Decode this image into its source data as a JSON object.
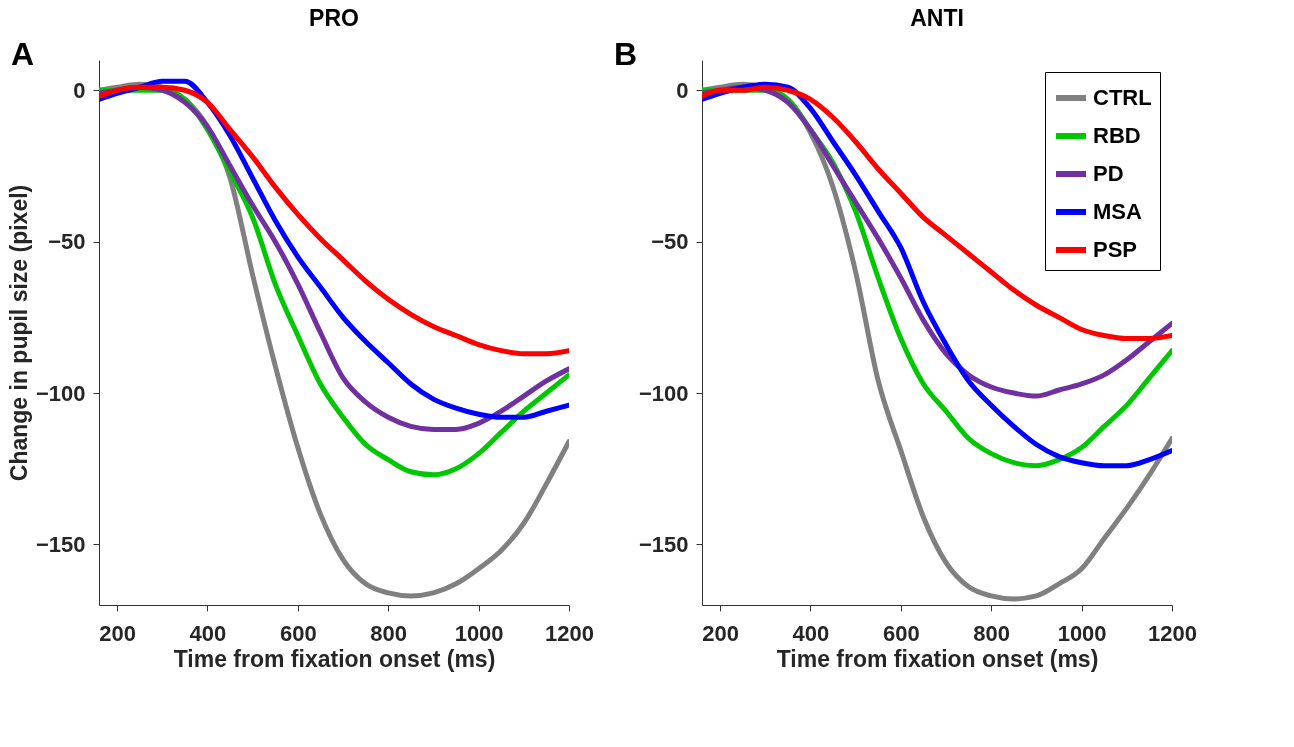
{
  "chart_data": [
    {
      "type": "line",
      "title": "PRO",
      "xlabel": "Time from fixation onset (ms)",
      "ylabel": "Change in pupil size (pixel)",
      "annotations": [
        "A"
      ],
      "legend": false,
      "grid": false,
      "line_style": "solid",
      "marker": "none",
      "x": [
        160,
        200,
        250,
        300,
        350,
        400,
        450,
        500,
        550,
        600,
        650,
        700,
        750,
        800,
        850,
        900,
        950,
        1000,
        1050,
        1100,
        1150,
        1200
      ],
      "xlim": [
        160,
        1200
      ],
      "xticks": [
        200,
        400,
        600,
        800,
        1000,
        1200
      ],
      "ylim": [
        -170,
        10
      ],
      "yticks": [
        0,
        -50,
        -100,
        -150
      ],
      "series": [
        {
          "color": "#808080",
          "values": [
            0,
            1,
            2,
            1,
            -3,
            -12,
            -29,
            -61,
            -91,
            -118,
            -140,
            -155,
            -163,
            -166,
            -167,
            -166,
            -163,
            -158,
            -152,
            -143,
            -130,
            -116
          ]
        },
        {
          "color": "#00c800",
          "values": [
            0,
            0,
            0,
            0,
            -3,
            -13,
            -27,
            -42,
            -64,
            -81,
            -97,
            -108,
            -117,
            -122,
            -126,
            -127,
            -125,
            -120,
            -113,
            -106,
            -100,
            -94
          ]
        },
        {
          "color": "#7030a0",
          "values": [
            -1,
            0,
            1,
            0,
            -4,
            -12,
            -25,
            -38,
            -50,
            -64,
            -80,
            -95,
            -103,
            -108,
            -111,
            -112,
            -112,
            -110,
            -106,
            -101,
            -96,
            -92
          ]
        },
        {
          "color": "#0000ff",
          "values": [
            -3,
            -1,
            1,
            3,
            3,
            -4,
            -15,
            -29,
            -43,
            -55,
            -65,
            -75,
            -83,
            -90,
            -97,
            -102,
            -105,
            -107,
            -108,
            -108,
            -106,
            -104
          ]
        },
        {
          "color": "#ff0000",
          "values": [
            -2,
            0,
            1,
            1,
            0,
            -4,
            -13,
            -22,
            -32,
            -41,
            -49,
            -56,
            -63,
            -69,
            -74,
            -78,
            -81,
            -84,
            -86,
            -87,
            -87,
            -86
          ]
        }
      ]
    },
    {
      "type": "line",
      "title": "ANTI",
      "xlabel": "Time from fixation onset (ms)",
      "annotations": [
        "B"
      ],
      "legend": "top right",
      "grid": false,
      "line_style": "solid",
      "marker": "none",
      "x": [
        160,
        200,
        250,
        300,
        350,
        400,
        450,
        500,
        550,
        600,
        650,
        700,
        750,
        800,
        850,
        900,
        950,
        1000,
        1050,
        1100,
        1150,
        1200
      ],
      "xlim": [
        160,
        1200
      ],
      "xticks": [
        200,
        400,
        600,
        800,
        1000,
        1200
      ],
      "ylim": [
        -170,
        10
      ],
      "yticks": [
        0,
        -50,
        -100,
        -150
      ],
      "series": [
        {
          "name": "CTRL",
          "color": "#808080",
          "values": [
            0,
            1,
            2,
            1,
            -3,
            -14,
            -32,
            -60,
            -96,
            -119,
            -141,
            -156,
            -164,
            -167,
            -168,
            -167,
            -163,
            -158,
            -148,
            -138,
            -127,
            -115
          ]
        },
        {
          "name": "RBD",
          "color": "#00c800",
          "values": [
            0,
            0,
            0,
            0,
            -3,
            -13,
            -24,
            -40,
            -62,
            -82,
            -97,
            -106,
            -115,
            -120,
            -123,
            -124,
            -122,
            -118,
            -111,
            -104,
            -95,
            -86
          ]
        },
        {
          "name": "PD",
          "color": "#7030a0",
          "values": [
            -1,
            0,
            1,
            0,
            -4,
            -13,
            -25,
            -37,
            -49,
            -62,
            -76,
            -87,
            -94,
            -98,
            -100,
            -101,
            -99,
            -97,
            -94,
            -89,
            -83,
            -77
          ]
        },
        {
          "name": "MSA",
          "color": "#0000ff",
          "values": [
            -3,
            -1,
            1,
            2,
            1,
            -6,
            -17,
            -28,
            -40,
            -52,
            -70,
            -84,
            -96,
            -104,
            -111,
            -117,
            -121,
            -123,
            -124,
            -124,
            -122,
            -119
          ]
        },
        {
          "name": "PSP",
          "color": "#ff0000",
          "values": [
            -2,
            0,
            0,
            1,
            0,
            -3,
            -9,
            -17,
            -26,
            -34,
            -42,
            -48,
            -54,
            -60,
            -66,
            -71,
            -75,
            -79,
            -81,
            -82,
            -82,
            -81
          ]
        }
      ]
    }
  ]
}
